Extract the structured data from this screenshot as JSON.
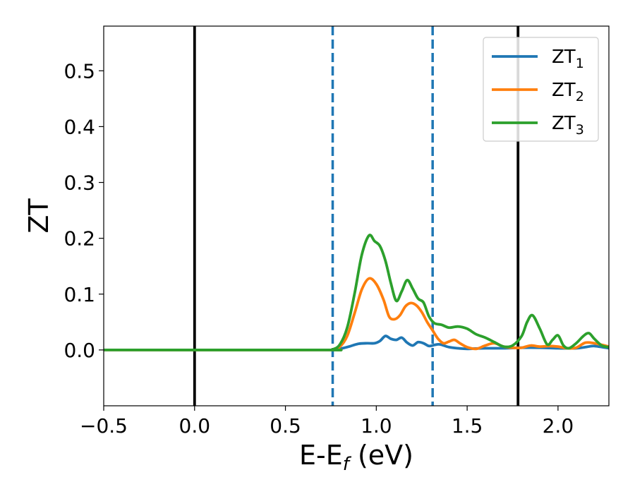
{
  "chart_data": {
    "type": "line",
    "xlabel": {
      "main": "E-E",
      "sub": "f",
      "suffix": " (eV)"
    },
    "ylabel": "ZT",
    "xlim": [
      -0.5,
      2.28
    ],
    "ylim": [
      -0.1,
      0.58
    ],
    "xticks": [
      -0.5,
      0.0,
      0.5,
      1.0,
      1.5,
      2.0
    ],
    "xtick_labels": [
      "−0.5",
      "0.0",
      "0.5",
      "1.0",
      "1.5",
      "2.0"
    ],
    "yticks": [
      0.0,
      0.1,
      0.2,
      0.3,
      0.4,
      0.5
    ],
    "ytick_labels": [
      "0.0",
      "0.1",
      "0.2",
      "0.3",
      "0.4",
      "0.5"
    ],
    "grid": false,
    "legend": {
      "placement": "top-right"
    },
    "vlines": [
      {
        "x": 0.0,
        "style": "solid",
        "color": "#000000"
      },
      {
        "x": 1.78,
        "style": "solid",
        "color": "#000000"
      },
      {
        "x": 0.76,
        "style": "dashed",
        "color": "#1f77b4"
      },
      {
        "x": 1.31,
        "style": "dashed",
        "color": "#1f77b4"
      }
    ],
    "series": [
      {
        "name": "ZT",
        "name_sub": "1",
        "color": "#1f77b4",
        "x": [
          -0.5,
          0.7,
          0.76,
          0.8,
          0.85,
          0.9,
          0.95,
          0.99,
          1.02,
          1.05,
          1.08,
          1.11,
          1.14,
          1.17,
          1.2,
          1.23,
          1.26,
          1.29,
          1.32,
          1.35,
          1.4,
          1.45,
          1.5,
          1.6,
          1.7,
          1.8,
          1.9,
          2.0,
          2.1,
          2.15,
          2.2,
          2.28
        ],
        "y": [
          0.0,
          0.0,
          0.0,
          0.002,
          0.006,
          0.011,
          0.012,
          0.012,
          0.016,
          0.025,
          0.02,
          0.018,
          0.022,
          0.013,
          0.008,
          0.014,
          0.012,
          0.007,
          0.009,
          0.01,
          0.005,
          0.003,
          0.002,
          0.003,
          0.003,
          0.004,
          0.004,
          0.003,
          0.003,
          0.005,
          0.007,
          0.003
        ]
      },
      {
        "name": "ZT",
        "name_sub": "2",
        "color": "#ff7f0e",
        "x": [
          -0.5,
          0.7,
          0.76,
          0.8,
          0.84,
          0.88,
          0.92,
          0.96,
          1.0,
          1.04,
          1.07,
          1.1,
          1.13,
          1.16,
          1.19,
          1.22,
          1.25,
          1.28,
          1.31,
          1.34,
          1.37,
          1.4,
          1.43,
          1.46,
          1.5,
          1.55,
          1.6,
          1.65,
          1.7,
          1.75,
          1.8,
          1.85,
          1.9,
          1.95,
          2.0,
          2.05,
          2.1,
          2.15,
          2.2,
          2.28
        ],
        "y": [
          0.0,
          0.0,
          0.001,
          0.006,
          0.025,
          0.065,
          0.108,
          0.128,
          0.118,
          0.09,
          0.06,
          0.055,
          0.062,
          0.078,
          0.084,
          0.08,
          0.068,
          0.05,
          0.035,
          0.02,
          0.012,
          0.015,
          0.018,
          0.012,
          0.005,
          0.002,
          0.008,
          0.012,
          0.006,
          0.004,
          0.004,
          0.008,
          0.006,
          0.007,
          0.006,
          0.003,
          0.004,
          0.013,
          0.012,
          0.006
        ]
      },
      {
        "name": "ZT",
        "name_sub": "3",
        "color": "#2ca02c",
        "x": [
          -0.5,
          0.7,
          0.76,
          0.8,
          0.84,
          0.88,
          0.92,
          0.96,
          0.99,
          1.02,
          1.05,
          1.08,
          1.11,
          1.14,
          1.17,
          1.2,
          1.23,
          1.26,
          1.29,
          1.32,
          1.36,
          1.4,
          1.45,
          1.5,
          1.55,
          1.6,
          1.65,
          1.7,
          1.75,
          1.8,
          1.83,
          1.86,
          1.9,
          1.94,
          1.97,
          2.0,
          2.03,
          2.06,
          2.1,
          2.14,
          2.17,
          2.2,
          2.24,
          2.28
        ],
        "y": [
          0.0,
          0.0,
          0.001,
          0.01,
          0.04,
          0.1,
          0.17,
          0.205,
          0.195,
          0.186,
          0.16,
          0.12,
          0.088,
          0.105,
          0.125,
          0.11,
          0.092,
          0.085,
          0.06,
          0.048,
          0.045,
          0.04,
          0.042,
          0.038,
          0.028,
          0.022,
          0.014,
          0.006,
          0.008,
          0.025,
          0.05,
          0.062,
          0.038,
          0.01,
          0.018,
          0.026,
          0.008,
          0.003,
          0.012,
          0.025,
          0.03,
          0.02,
          0.008,
          0.005
        ]
      }
    ]
  }
}
